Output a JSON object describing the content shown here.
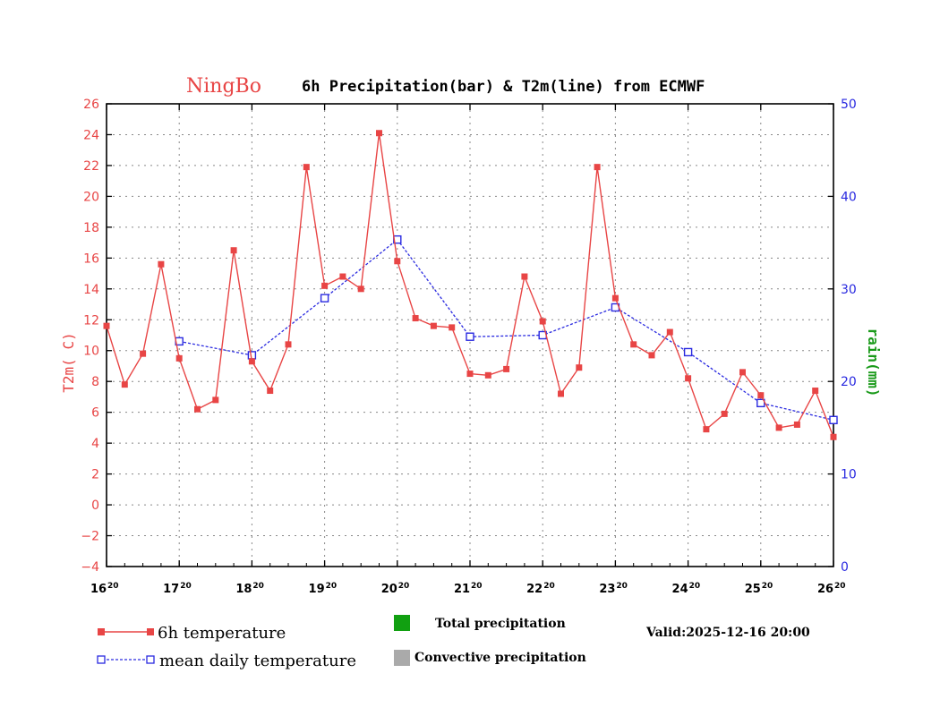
{
  "colors": {
    "temperature": "#e84545",
    "mean": "#2a2ae0",
    "rain_axis": "#1a9a1a",
    "total_precip": "#11a011",
    "convective_precip": "#aaaaaa"
  },
  "chart_data": {
    "type": "line",
    "title_city": "NingBo",
    "title": "6h Precipitation(bar) & T2m(line) from ECMWF",
    "ylabel_left": "T2m( C)",
    "ylabel_right": "rain(mm)",
    "x_tick_labels": [
      {
        "day": "16",
        "hour": "20"
      },
      {
        "day": "17",
        "hour": "20"
      },
      {
        "day": "18",
        "hour": "20"
      },
      {
        "day": "19",
        "hour": "20"
      },
      {
        "day": "20",
        "hour": "20"
      },
      {
        "day": "21",
        "hour": "20"
      },
      {
        "day": "22",
        "hour": "20"
      },
      {
        "day": "23",
        "hour": "20"
      },
      {
        "day": "24",
        "hour": "20"
      },
      {
        "day": "25",
        "hour": "20"
      },
      {
        "day": "26",
        "hour": "20"
      }
    ],
    "xlim_days": [
      0,
      10
    ],
    "ylim_left": [
      -4,
      26
    ],
    "y_ticks_left": [
      -4,
      -2,
      0,
      2,
      4,
      6,
      8,
      10,
      12,
      14,
      16,
      18,
      20,
      22,
      24,
      26
    ],
    "ylim_right": [
      0,
      50
    ],
    "y_ticks_right": [
      0,
      10,
      20,
      30,
      40,
      50
    ],
    "series": [
      {
        "name": "6h temperature",
        "x_days": [
          0,
          0.25,
          0.5,
          0.75,
          1,
          1.25,
          1.5,
          1.75,
          2,
          2.25,
          2.5,
          2.75,
          3,
          3.25,
          3.5,
          3.75,
          4,
          4.25,
          4.5,
          4.75,
          5,
          5.25,
          5.5,
          5.75,
          6,
          6.25,
          6.5,
          6.75,
          7,
          7.25,
          7.5,
          7.75,
          8,
          8.25,
          8.5,
          8.75,
          9,
          9.25,
          9.5,
          9.75,
          10
        ],
        "values": [
          11.6,
          7.8,
          9.8,
          15.6,
          9.5,
          6.2,
          6.8,
          16.5,
          9.3,
          7.4,
          10.4,
          21.9,
          14.2,
          14.8,
          14.0,
          24.1,
          15.8,
          12.1,
          11.6,
          11.5,
          8.5,
          8.4,
          8.8,
          14.8,
          11.9,
          7.2,
          8.9,
          21.9,
          13.4,
          10.4,
          9.7,
          11.2,
          8.2,
          4.9,
          5.9,
          8.6,
          7.1,
          5.0,
          5.2,
          7.4,
          4.4
        ]
      },
      {
        "name": "mean daily temperature",
        "x_days": [
          1,
          2,
          3,
          4,
          5,
          6,
          7,
          8,
          9,
          10
        ],
        "values": [
          10.6,
          9.7,
          13.4,
          17.2,
          10.9,
          11.0,
          12.8,
          9.9,
          6.6,
          5.5
        ]
      }
    ],
    "precipitation_bars": []
  },
  "legend": {
    "temp_label": "6h temperature",
    "mean_label": "mean daily temperature",
    "total_label": "Total precipitation",
    "conv_label": "Convective precipitation"
  },
  "valid_text": "Valid:2025-12-16 20:00"
}
